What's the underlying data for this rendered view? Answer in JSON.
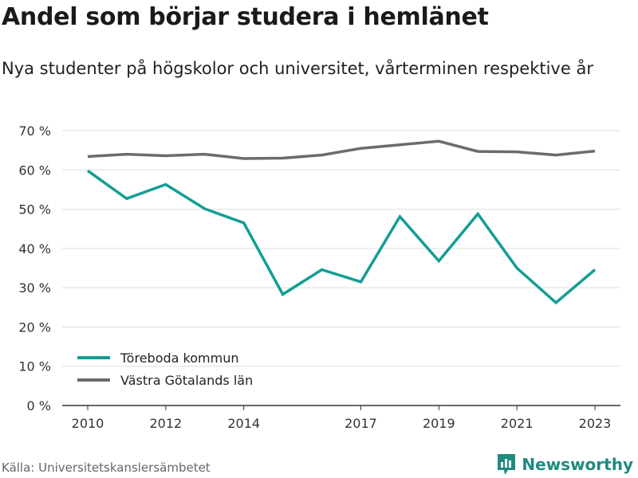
{
  "title": "Andel som börjar studera i hemlänet",
  "subtitle": "Nya studenter på högskolor och universitet, vårterminen respektive år",
  "source": "Källa: Universitetskanslersämbetet",
  "brand": "Newsworthy",
  "chart_data": {
    "type": "line",
    "x": [
      2010,
      2011,
      2012,
      2013,
      2014,
      2015,
      2016,
      2017,
      2018,
      2019,
      2020,
      2021,
      2022,
      2023
    ],
    "x_tick_values": [
      2010,
      2012,
      2014,
      2017,
      2019,
      2021,
      2023
    ],
    "x_tick_labels": [
      "2010",
      "2012",
      "2014",
      "2017",
      "2019",
      "2021",
      "2023"
    ],
    "y_tick_values": [
      0,
      10,
      20,
      30,
      40,
      50,
      60,
      70
    ],
    "y_tick_labels": [
      "0 %",
      "10 %",
      "20 %",
      "30 %",
      "40 %",
      "50 %",
      "60 %",
      "70 %"
    ],
    "ylim": [
      0,
      70
    ],
    "xlim": [
      2010,
      2023
    ],
    "grid": true,
    "legend_position": "bottom-left",
    "series": [
      {
        "name": "Töreboda kommun",
        "color": "#139e94",
        "values": [
          59.8,
          52.7,
          56.3,
          50.1,
          46.5,
          28.3,
          34.6,
          31.5,
          48.1,
          36.8,
          48.8,
          35.0,
          26.2,
          34.6
        ]
      },
      {
        "name": "Västra Götalands län",
        "color": "#6b6b70",
        "values": [
          63.4,
          64.0,
          63.6,
          64.0,
          62.9,
          63.0,
          63.8,
          65.5,
          66.4,
          67.3,
          64.7,
          64.6,
          63.8,
          64.8
        ]
      }
    ]
  }
}
